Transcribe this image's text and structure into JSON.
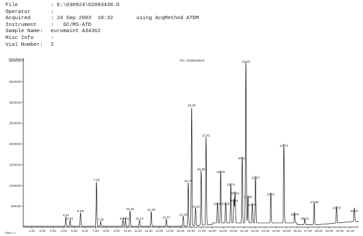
{
  "header": {
    "file_label": "File",
    "file_value": ": E:\\030924\\02093438.D",
    "operator_label": "Operator",
    "operator_value": ":",
    "acquired_label": "Acquired",
    "acquired_value": ": 24 Sep 2003  18:32",
    "method_text": "using AcqMethod ATDM",
    "instrument_label": "Instrument",
    "instrument_value": ":   GC/MS-ATD",
    "sample_label": "Sample Name:",
    "sample_value": "euromaint A34362",
    "misc_label": "Misc Info",
    "misc_value": ":",
    "vial_label": "Vial Number:",
    "vial_value": "2"
  },
  "chart_data": {
    "type": "line",
    "title": "TIC: 02093438.D",
    "ylabel": "Abundance",
    "xlabel": "Time-->",
    "xlim": [
      0.2,
      31.8
    ],
    "ylim": [
      0,
      4050000
    ],
    "yticks": [
      {
        "v": 500000,
        "label": "500000"
      },
      {
        "v": 1000000,
        "label": "1000000"
      },
      {
        "v": 1500000,
        "label": "1500000"
      },
      {
        "v": 2000000,
        "label": "2000000"
      },
      {
        "v": 2500000,
        "label": "2500000"
      },
      {
        "v": 3000000,
        "label": "3000000"
      },
      {
        "v": 3500000,
        "label": "3500000"
      },
      {
        "v": 4000000,
        "label": "4000000"
      }
    ],
    "xticks": [
      {
        "v": 1,
        "label": "1.00"
      },
      {
        "v": 2,
        "label": "2.00"
      },
      {
        "v": 3,
        "label": "3.00"
      },
      {
        "v": 4,
        "label": "4.00"
      },
      {
        "v": 5,
        "label": "5.00"
      },
      {
        "v": 6,
        "label": "6.00"
      },
      {
        "v": 7,
        "label": "7.00"
      },
      {
        "v": 8,
        "label": "8.00"
      },
      {
        "v": 9,
        "label": "9.00"
      },
      {
        "v": 10,
        "label": "10.00"
      },
      {
        "v": 11,
        "label": "11.00"
      },
      {
        "v": 12,
        "label": "12.00"
      },
      {
        "v": 13,
        "label": "13.00"
      },
      {
        "v": 14,
        "label": "14.00"
      },
      {
        "v": 15,
        "label": "15.00"
      },
      {
        "v": 16,
        "label": "16.00"
      },
      {
        "v": 17,
        "label": "17.00"
      },
      {
        "v": 18,
        "label": "18.00"
      },
      {
        "v": 19,
        "label": "19.00"
      },
      {
        "v": 20,
        "label": "20.00"
      },
      {
        "v": 21,
        "label": "21.00"
      },
      {
        "v": 22,
        "label": "22.00"
      },
      {
        "v": 23,
        "label": "23.00"
      },
      {
        "v": 24,
        "label": "24.00"
      },
      {
        "v": 25,
        "label": "25.00"
      },
      {
        "v": 26,
        "label": "26.00"
      },
      {
        "v": 27,
        "label": "27.00"
      },
      {
        "v": 28,
        "label": "28.00"
      },
      {
        "v": 29,
        "label": "29.00"
      },
      {
        "v": 30,
        "label": "30.00"
      },
      {
        "v": 31,
        "label": "31.00"
      }
    ],
    "peaks": [
      {
        "x": 4.21,
        "y": 230000,
        "label": "4.21"
      },
      {
        "x": 4.61,
        "y": 150000,
        "label": "4.61"
      },
      {
        "x": 5.59,
        "y": 330000,
        "label": "5.59"
      },
      {
        "x": 7.09,
        "y": 1080000,
        "label": "7.09"
      },
      {
        "x": 7.49,
        "y": 120000,
        "label": "7.49"
      },
      {
        "x": 9.59,
        "y": 150000,
        "label": "9.59"
      },
      {
        "x": 9.83,
        "y": 150000,
        "label": "9.83"
      },
      {
        "x": 10.25,
        "y": 380000,
        "label": "10.25"
      },
      {
        "x": 11.14,
        "y": 150000,
        "label": "11.14"
      },
      {
        "x": 12.25,
        "y": 360000,
        "label": "12.25"
      },
      {
        "x": 13.67,
        "y": 170000,
        "label": "13.67"
      },
      {
        "x": 15.26,
        "y": 240000,
        "label": "15.26"
      },
      {
        "x": 15.73,
        "y": 1050000,
        "label": "15.73"
      },
      {
        "x": 16.05,
        "y": 2870000,
        "label": "16.05"
      },
      {
        "x": 16.42,
        "y": 440000,
        "label": "16.42"
      },
      {
        "x": 16.95,
        "y": 1330000,
        "label": "16.95"
      },
      {
        "x": 17.41,
        "y": 2150000,
        "label": "17.41"
      },
      {
        "x": 18.79,
        "y": 1270000,
        "label": "18.79"
      },
      {
        "x": 18.49,
        "y": 500000,
        "label": "18.49"
      },
      {
        "x": 19.26,
        "y": 500000,
        "label": "19.26"
      },
      {
        "x": 19.74,
        "y": 960000,
        "label": "19.74"
      },
      {
        "x": 20.14,
        "y": 760000,
        "label": "20.14"
      },
      {
        "x": 20.03,
        "y": 580000,
        "label": "20.03"
      },
      {
        "x": 20.81,
        "y": 1600000,
        "label": "20.81"
      },
      {
        "x": 21.16,
        "y": 3930000,
        "label": "21.16"
      },
      {
        "x": 21.36,
        "y": 670000,
        "label": "21.36"
      },
      {
        "x": 21.77,
        "y": 480000,
        "label": "21.77"
      },
      {
        "x": 22.07,
        "y": 1130000,
        "label": "22.07"
      },
      {
        "x": 23.51,
        "y": 730000,
        "label": "23.51"
      },
      {
        "x": 24.74,
        "y": 1900000,
        "label": "24.74"
      },
      {
        "x": 25.75,
        "y": 250000,
        "label": "25.75"
      },
      {
        "x": 26.71,
        "y": 150000,
        "label": "26.71"
      },
      {
        "x": 27.59,
        "y": 540000,
        "label": "27.59"
      },
      {
        "x": 29.7,
        "y": 400000,
        "label": "29.70"
      },
      {
        "x": 31.37,
        "y": 330000,
        "label": "31.37"
      }
    ]
  }
}
